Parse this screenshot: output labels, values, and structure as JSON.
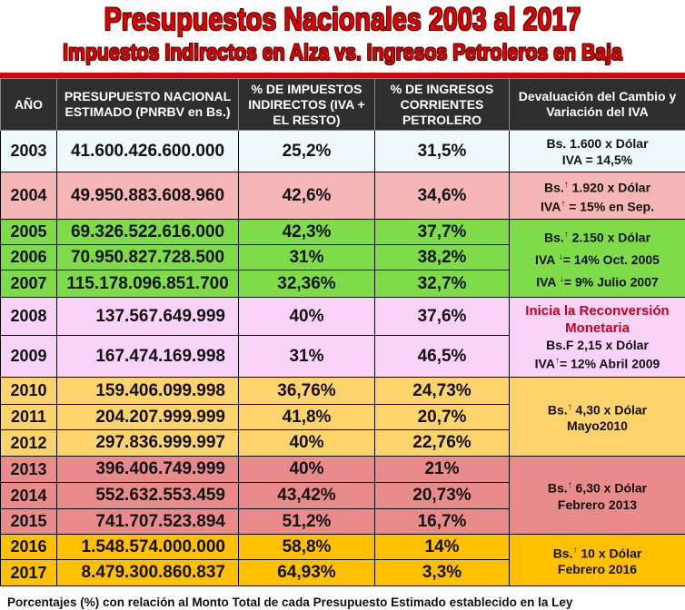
{
  "title": "Presupuestos Nacionales 2003 al 2017",
  "subtitle": "Impuestos Indirectos en Alza vs. Ingresos Petroleros en Baja",
  "headers": [
    "AÑO",
    "PRESUPUESTO NACIONAL ESTIMADO (PNRBV en Bs.)",
    "% DE IMPUESTOS INDIRECTOS (IVA + EL RESTO)",
    "% DE INGRESOS CORRIENTES PETROLERO",
    "Devaluación del Cambio y Variación del IVA"
  ],
  "rows": [
    {
      "year": "2003",
      "budget": "41.600.426.600.000",
      "indirect": "25,2%",
      "oil": "31,5%"
    },
    {
      "year": "2004",
      "budget": "49.950.883.608.960",
      "indirect": "42,6%",
      "oil": "34,6%"
    },
    {
      "year": "2005",
      "budget": "69.326.522.616.000",
      "indirect": "42,3%",
      "oil": "37,7%"
    },
    {
      "year": "2006",
      "budget": "70.950.827.728.500",
      "indirect": "31%",
      "oil": "38,2%"
    },
    {
      "year": "2007",
      "budget": "115.178.096.851.700",
      "indirect": "32,36%",
      "oil": "32,7%"
    },
    {
      "year": "2008",
      "budget": "137.567.649.999",
      "indirect": "40%",
      "oil": "37,6%"
    },
    {
      "year": "2009",
      "budget": "167.474.169.998",
      "indirect": "31%",
      "oil": "46,5%"
    },
    {
      "year": "2010",
      "budget": "159.406.099.998",
      "indirect": "36,76%",
      "oil": "24,73%"
    },
    {
      "year": "2011",
      "budget": "204.207.999.999",
      "indirect": "41,8%",
      "oil": "20,7%"
    },
    {
      "year": "2012",
      "budget": "297.836.999.997",
      "indirect": "40%",
      "oil": "22,76%"
    },
    {
      "year": "2013",
      "budget": "396.406.749.999",
      "indirect": "40%",
      "oil": "21%"
    },
    {
      "year": "2014",
      "budget": "552.632.553.459",
      "indirect": "43,42%",
      "oil": "20,73%"
    },
    {
      "year": "2015",
      "budget": "741.707.523.894",
      "indirect": "51,2%",
      "oil": "16,7%"
    },
    {
      "year": "2016",
      "budget": "1.548.574.000.000",
      "indirect": "58,8%",
      "oil": "14%"
    },
    {
      "year": "2017",
      "budget": "8.479.300.860.837",
      "indirect": "64,93%",
      "oil": "3,3%"
    }
  ],
  "notes": {
    "g1": [
      "Bs. 1.600 x Dólar",
      "IVA = 14,5%"
    ],
    "g2": [
      "Bs.",
      "1.920 x Dólar",
      "IVA",
      "= 15% en Sep."
    ],
    "g3": [
      "Bs.",
      "2.150 x Dólar",
      "IVA",
      "= 14% Oct. 2005",
      "IVA",
      "= 9% Julio 2007"
    ],
    "g4": [
      "Inicia la Reconversión Monetaria",
      "Bs.F 2,15 x Dólar",
      "IVA",
      "= 12%  Abril 2009"
    ],
    "g5": [
      "Bs.",
      "4,30 x Dólar",
      "Mayo2010"
    ],
    "g6": [
      "Bs.",
      "6,30 x Dólar",
      "Febrero 2013"
    ],
    "g7": [
      "Bs.",
      "10 x Dólar",
      "Febrero 2016"
    ]
  },
  "footer": "Porcentajes (%) con relación al Monto Total de cada Presupuesto Estimado establecido en la Ley"
}
